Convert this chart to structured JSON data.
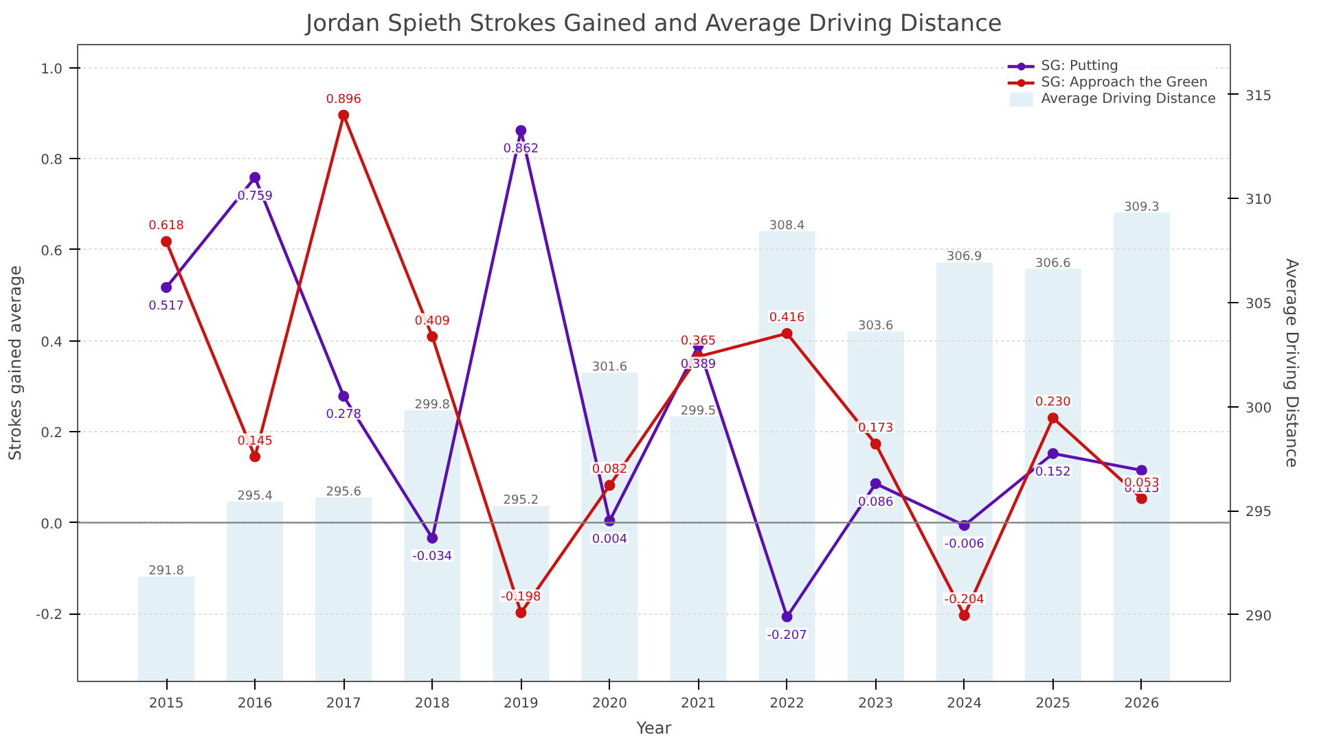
{
  "chart_data": {
    "type": "line",
    "title": "Jordan Spieth Strokes Gained and Average Driving Distance",
    "xlabel": "Year",
    "ylabel": "Strokes gained average",
    "y2label": "Average Driving Distance",
    "categories": [
      "2015",
      "2016",
      "2017",
      "2018",
      "2019",
      "2020",
      "2021",
      "2022",
      "2023",
      "2024",
      "2025",
      "2026"
    ],
    "series": [
      {
        "name": "SG: Putting",
        "color": "#5b0fb0",
        "values": [
          0.517,
          0.759,
          0.278,
          -0.034,
          0.862,
          0.004,
          0.389,
          -0.207,
          0.086,
          -0.006,
          0.152,
          0.115
        ]
      },
      {
        "name": "SG: Approach the Green",
        "color": "#cc1111",
        "values": [
          0.618,
          0.145,
          0.896,
          0.409,
          -0.198,
          0.082,
          0.365,
          0.416,
          0.173,
          -0.204,
          0.23,
          0.053
        ],
        "value_labels": [
          "0.618",
          "0.145",
          "0.896",
          "0.409",
          "-0.198",
          "0.082",
          "0.365",
          "0.416",
          "0.173",
          "-0.204",
          "0.230",
          "0.053"
        ]
      },
      {
        "name": "Average Driving Distance",
        "type": "bar",
        "axis": "y2",
        "color": "#e3f1f6",
        "values": [
          291.8,
          295.4,
          295.6,
          299.8,
          295.2,
          301.6,
          299.5,
          308.4,
          303.6,
          306.9,
          306.6,
          309.3
        ]
      }
    ],
    "ylim": [
      -0.349,
      1.051
    ],
    "yticks": [
      {
        "value": -0.2,
        "label": "-0.2"
      },
      {
        "value": 0,
        "label": "0.0"
      },
      {
        "value": 0.2,
        "label": "0.2"
      },
      {
        "value": 0.4,
        "label": "0.4"
      },
      {
        "value": 0.6,
        "label": "0.6"
      },
      {
        "value": 0.8,
        "label": "0.8"
      },
      {
        "value": 1,
        "label": "1.0"
      }
    ],
    "y2lim": [
      286.8,
      317.4
    ],
    "y2ticks": [
      290,
      295,
      300,
      305,
      310,
      315
    ],
    "ref_lines": [
      {
        "axis": "y",
        "value": 0,
        "color": "#808080",
        "line_style": "solid"
      }
    ],
    "data_labels": true,
    "grid": "y",
    "legend": "top right",
    "marker": "circle",
    "line_style": "solid"
  }
}
